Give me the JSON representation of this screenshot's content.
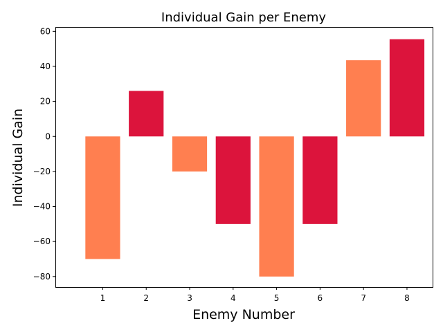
{
  "chart_data": {
    "type": "bar",
    "title": "Individual Gain per Enemy",
    "xlabel": "Enemy Number",
    "ylabel": "Individual Gain",
    "categories": [
      "1",
      "2",
      "3",
      "4",
      "5",
      "6",
      "7",
      "8"
    ],
    "values": [
      -70,
      26,
      -20,
      -50,
      -80,
      -50,
      43.5,
      55.5
    ],
    "bar_colors": [
      "#ff7f50",
      "#dc143c",
      "#ff7f50",
      "#dc143c",
      "#ff7f50",
      "#dc143c",
      "#ff7f50",
      "#dc143c"
    ],
    "ylim": [
      -86,
      62.5
    ],
    "yticks": [
      -80,
      -60,
      -40,
      -20,
      0,
      20,
      40,
      60
    ],
    "ytick_labels": [
      "−80",
      "−60",
      "−40",
      "−20",
      "0",
      "20",
      "40",
      "60"
    ],
    "grid": false,
    "legend": false
  }
}
